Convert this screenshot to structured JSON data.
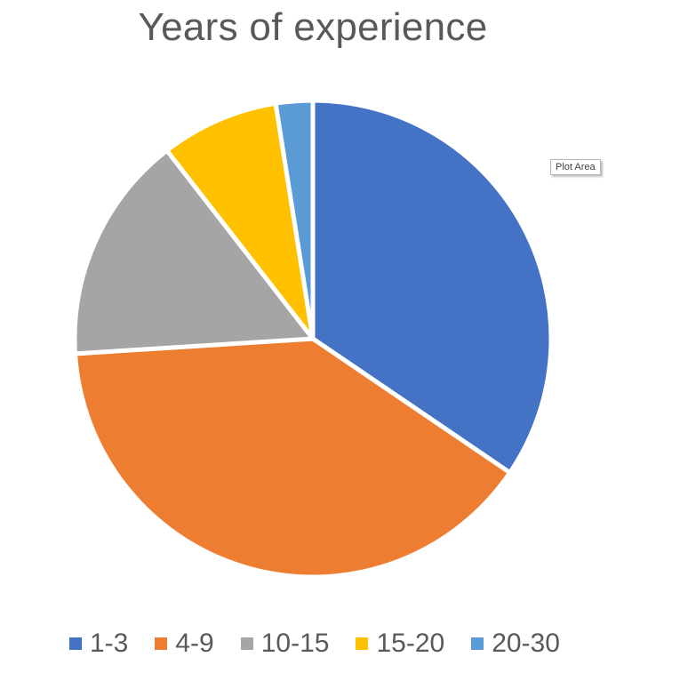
{
  "tooltip": "Plot Area",
  "chart_data": {
    "type": "pie",
    "title": "Years of experience",
    "categories": [
      "1-3",
      "4-9",
      "10-15",
      "15-20",
      "20-30"
    ],
    "values": [
      34.5,
      39.5,
      15.5,
      8,
      2.5
    ],
    "colors": [
      "#4472C4",
      "#ED7D31",
      "#A5A5A5",
      "#FFC000",
      "#5B9BD5"
    ],
    "legend_position": "bottom",
    "start_angle_deg": 0,
    "direction": "clockwise"
  }
}
